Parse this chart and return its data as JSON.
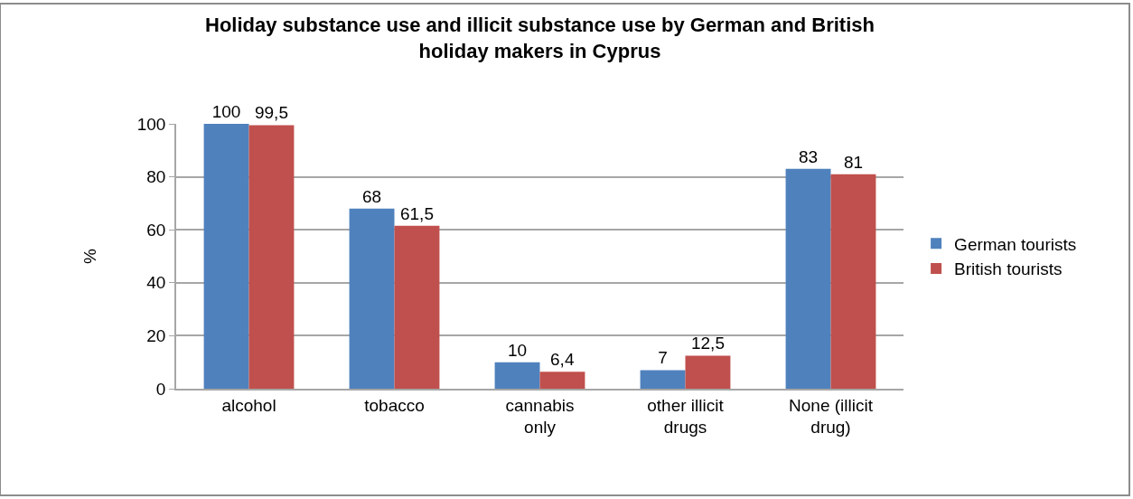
{
  "chart_data": {
    "type": "bar",
    "title": "Holiday substance use and illicit substance use by German and British holiday makers in Cyprus",
    "ylabel": "%",
    "categories": [
      "alcohol",
      "tobacco",
      "cannabis only",
      "other illicit drugs",
      "None (illicit drug)"
    ],
    "series": [
      {
        "name": "German tourists",
        "color": "#4f81bd",
        "values": [
          100,
          68,
          10,
          7,
          83
        ],
        "value_labels": [
          "100",
          "68",
          "10",
          "7",
          "83"
        ]
      },
      {
        "name": "British tourists",
        "color": "#c0504d",
        "values": [
          99.5,
          61.5,
          6.4,
          12.5,
          81
        ],
        "value_labels": [
          "99,5",
          "61,5",
          "6,4",
          "12,5",
          "81"
        ]
      }
    ],
    "ylim": [
      0,
      100
    ],
    "yticks": [
      0,
      20,
      40,
      60,
      80,
      100
    ],
    "grid": "y",
    "legend": "right"
  }
}
